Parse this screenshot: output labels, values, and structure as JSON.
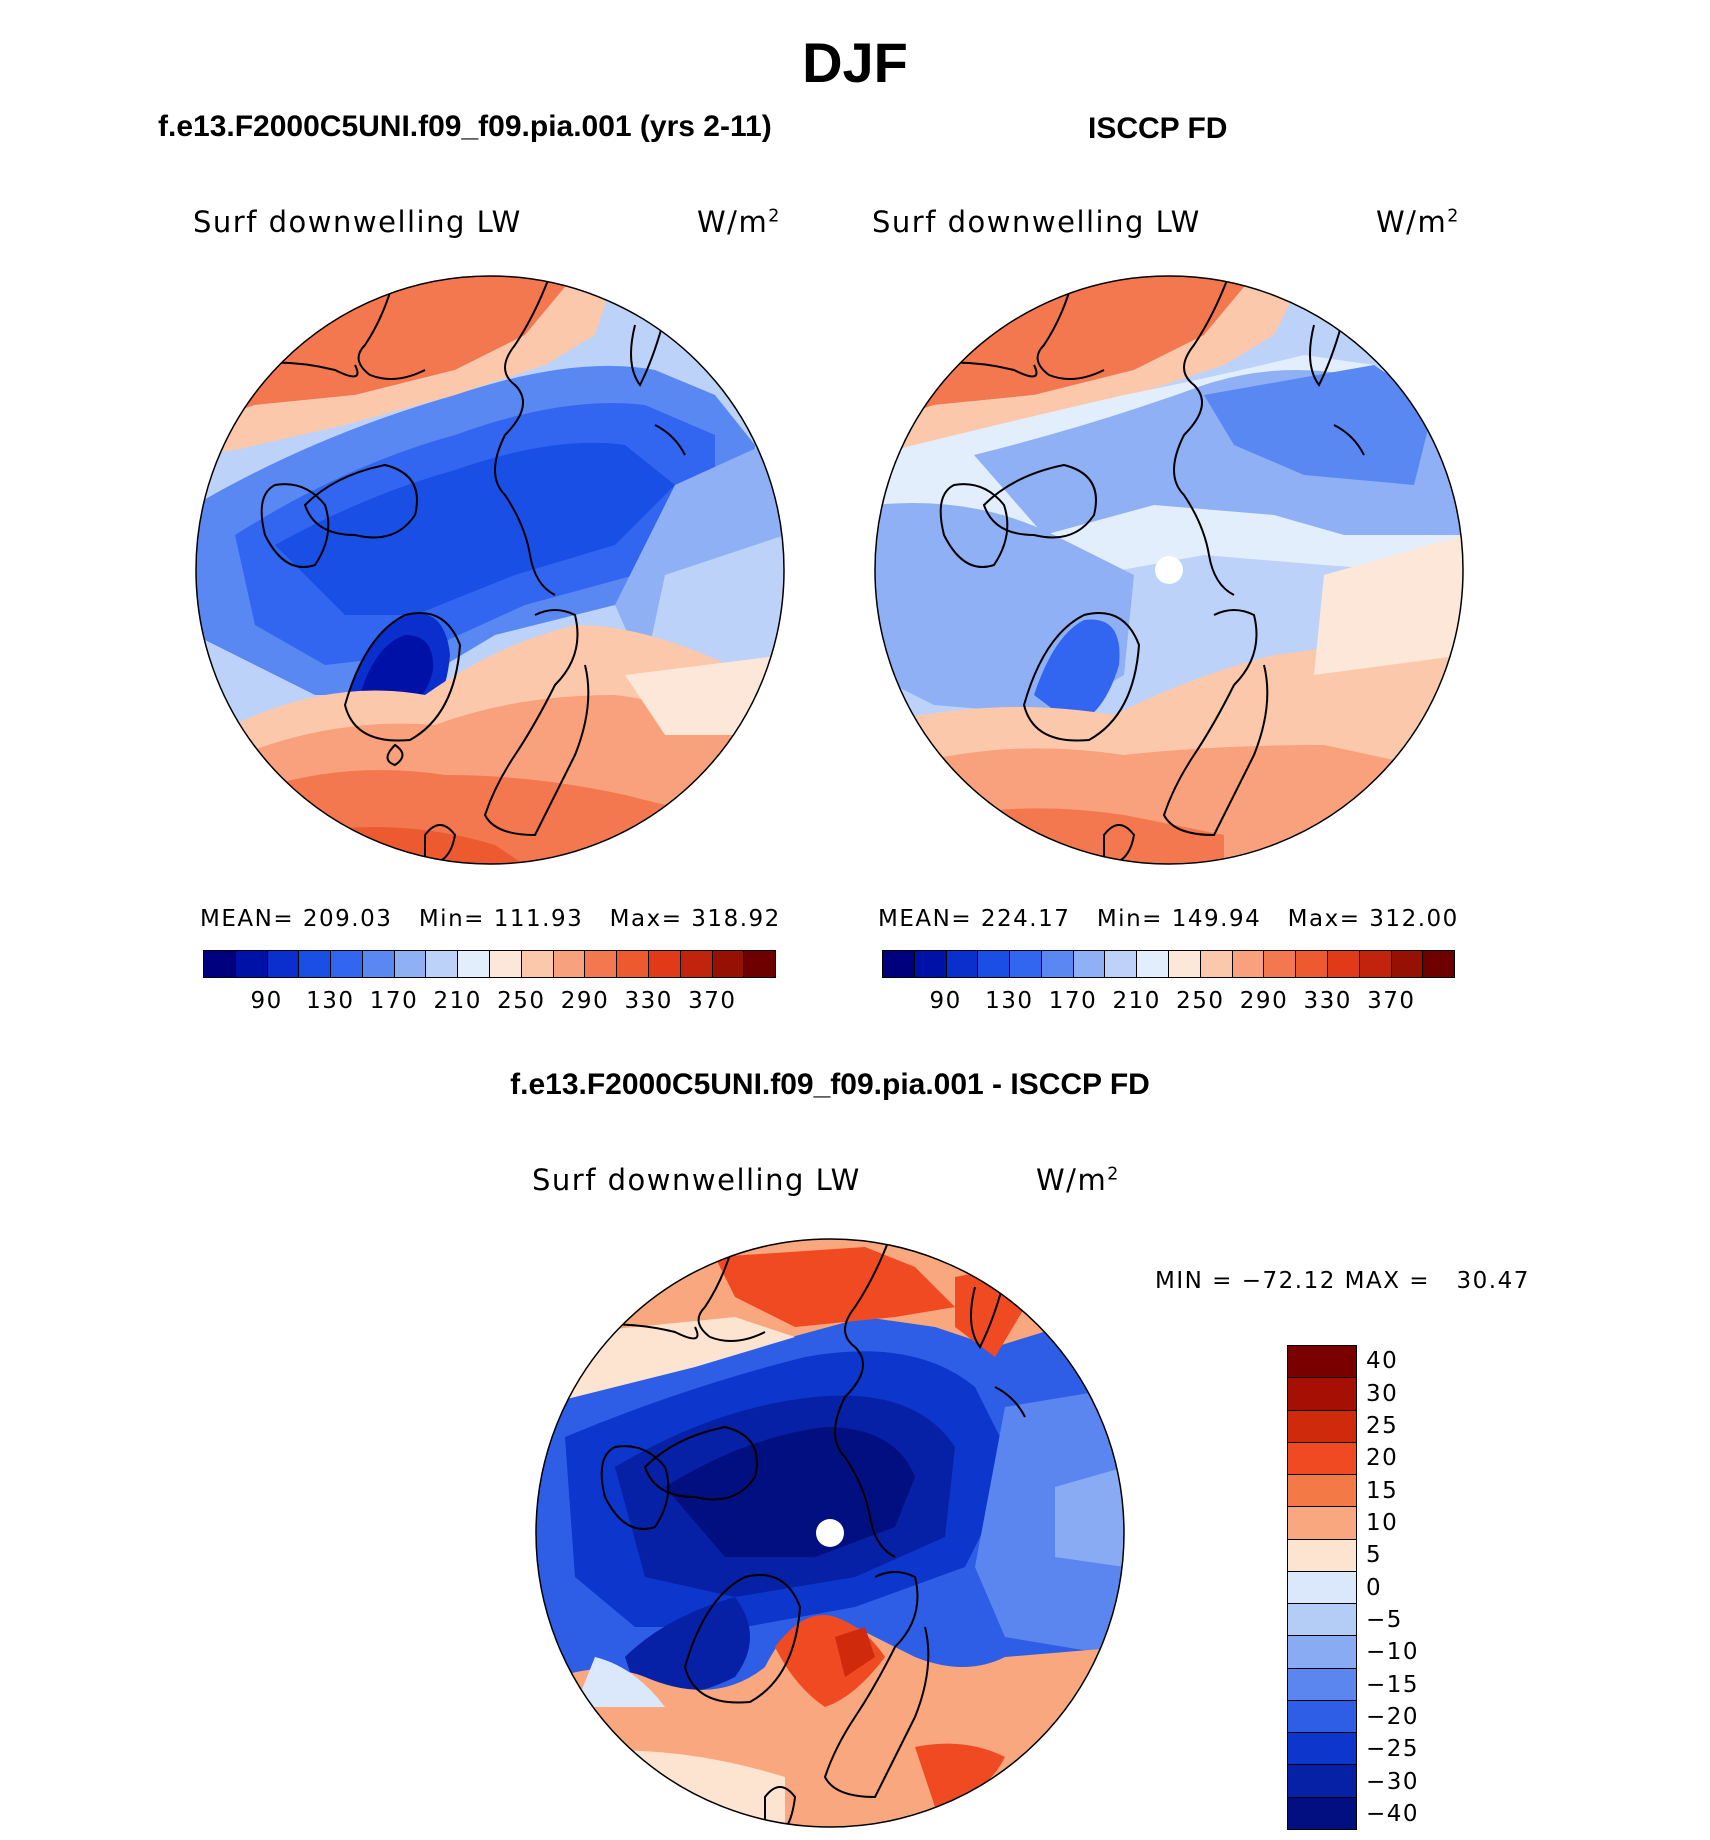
{
  "season": "DJF",
  "panels": [
    {
      "title": "f.e13.F2000C5UNI.f09_f09.pia.001 (yrs 2-11)",
      "variable": "Surf downwelling LW",
      "units_base": "W/m",
      "units_exp": "2",
      "stats": {
        "mean": "209.03",
        "min": "111.93",
        "max": "318.92"
      }
    },
    {
      "title": "ISCCP FD",
      "variable": "Surf downwelling LW",
      "units_base": "W/m",
      "units_exp": "2",
      "stats": {
        "mean": "224.17",
        "min": "149.94",
        "max": "312.00"
      }
    }
  ],
  "abs_colorbar": {
    "colors": [
      "#00007f",
      "#0011a8",
      "#0a2fcc",
      "#1a4fe6",
      "#3366f0",
      "#5a88f2",
      "#8fb0f5",
      "#bdd2f8",
      "#e3eefc",
      "#fde7d8",
      "#fcc8ac",
      "#f9a07c",
      "#f37850",
      "#ee5a2f",
      "#e03a18",
      "#c1230c",
      "#961004",
      "#6e0000"
    ],
    "tick_labels": [
      "90",
      "130",
      "170",
      "210",
      "250",
      "290",
      "330",
      "370"
    ]
  },
  "diff_panel": {
    "title": "f.e13.F2000C5UNI.f09_f09.pia.001 - ISCCP FD",
    "variable": "Surf downwelling LW",
    "units_base": "W/m",
    "units_exp": "2",
    "min_max": "MIN = −72.12 MAX =   30.47"
  },
  "diff_colorbar": {
    "colors": [
      "#7a0000",
      "#a50f04",
      "#cf2a0c",
      "#f04a22",
      "#f37a47",
      "#f8a77e",
      "#fde4d0",
      "#dbe8fb",
      "#b3cdf7",
      "#89abf3",
      "#5b86ef",
      "#2f5ee6",
      "#0c36cc",
      "#0621a6",
      "#010f80"
    ],
    "tick_labels": [
      "40",
      "30",
      "25",
      "20",
      "15",
      "10",
      "5",
      "0",
      "−5",
      "−10",
      "−15",
      "−20",
      "−25",
      "−30",
      "−40"
    ]
  },
  "stat_labels": {
    "mean": "MEAN=",
    "min": "Min=",
    "max": "Max="
  }
}
